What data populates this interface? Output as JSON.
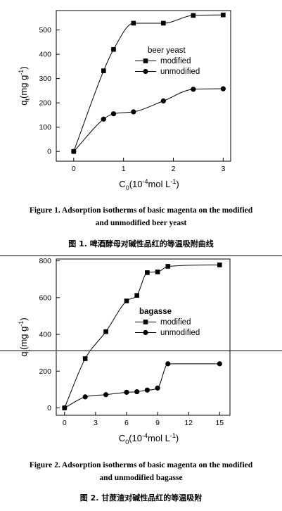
{
  "chart_data": [
    {
      "type": "line",
      "xlabel": "C0(10-4mol L-1)",
      "ylabel": "qt(mg g-1)",
      "xlim": [
        -0.35,
        3.15
      ],
      "ylim": [
        -40,
        580
      ],
      "xticks": [
        0,
        1,
        2,
        3
      ],
      "yticks": [
        0,
        100,
        200,
        300,
        400,
        500
      ],
      "legend_title": "beer yeast",
      "legend_position": "top-right",
      "series": [
        {
          "name": "modified",
          "marker": "square",
          "x": [
            0,
            0.6,
            0.8,
            1.2,
            1.8,
            2.4,
            3.0
          ],
          "y": [
            0,
            332,
            420,
            528,
            528,
            560,
            562
          ]
        },
        {
          "name": "unmodified",
          "marker": "circle",
          "x": [
            0,
            0.6,
            0.8,
            1.2,
            1.8,
            2.4,
            3.0
          ],
          "y": [
            0,
            133,
            155,
            163,
            208,
            256,
            258
          ]
        }
      ]
    },
    {
      "type": "line",
      "xlabel": "C0(10-4mol L-1)",
      "ylabel": "qt(mg g-1)",
      "xlim": [
        -0.8,
        16
      ],
      "ylim": [
        -40,
        810
      ],
      "xticks": [
        0,
        3,
        6,
        9,
        12,
        15
      ],
      "yticks": [
        0,
        200,
        400,
        600,
        800
      ],
      "legend_title": "bagasse",
      "legend_position": "center-right",
      "series": [
        {
          "name": "modified",
          "marker": "square",
          "x": [
            0,
            2,
            4,
            6,
            7,
            8,
            9,
            10,
            15
          ],
          "y": [
            0,
            268,
            415,
            582,
            612,
            736,
            740,
            770,
            778
          ]
        },
        {
          "name": "unmodified",
          "marker": "circle",
          "x": [
            0,
            2,
            4,
            6,
            7,
            8,
            9,
            10,
            15
          ],
          "y": [
            0,
            60,
            72,
            85,
            88,
            97,
            108,
            240,
            240
          ]
        }
      ]
    }
  ],
  "captions": {
    "fig1_en_line1": "Figure 1.  Adsorption isotherms of basic magenta on the modified",
    "fig1_en_line2": "and unmodified beer yeast",
    "fig1_zh": "图 1.  啤酒酵母对碱性品红的等温吸附曲线",
    "fig2_en_line1": "Figure 2.  Adsorption isotherms of basic magenta on the modified",
    "fig2_en_line2": "and unmodified bagasse",
    "fig2_zh": "图 2.  甘蔗渣对碱性品红的等温吸附"
  },
  "colors": {
    "ink": "#000000",
    "background": "#ffffff"
  }
}
